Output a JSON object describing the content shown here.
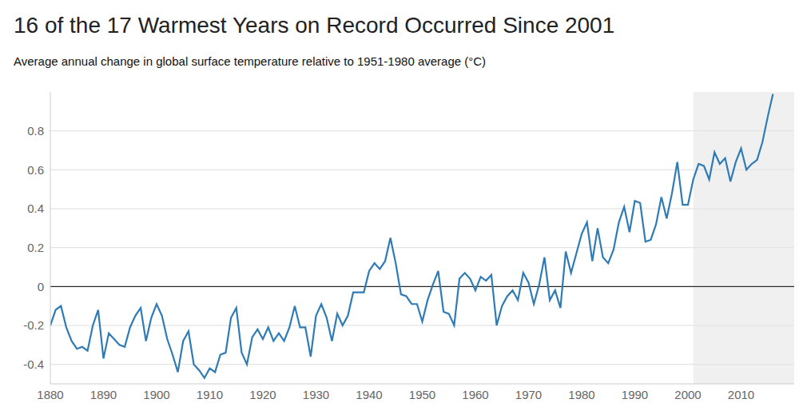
{
  "chart_data": {
    "type": "line",
    "title": "16 of the 17 Warmest Years on Record Occurred Since 2001",
    "subtitle": "Average annual change in global surface temperature relative to 1951-1980 average (°C)",
    "x": [
      1880,
      1881,
      1882,
      1883,
      1884,
      1885,
      1886,
      1887,
      1888,
      1889,
      1890,
      1891,
      1892,
      1893,
      1894,
      1895,
      1896,
      1897,
      1898,
      1899,
      1900,
      1901,
      1902,
      1903,
      1904,
      1905,
      1906,
      1907,
      1908,
      1909,
      1910,
      1911,
      1912,
      1913,
      1914,
      1915,
      1916,
      1917,
      1918,
      1919,
      1920,
      1921,
      1922,
      1923,
      1924,
      1925,
      1926,
      1927,
      1928,
      1929,
      1930,
      1931,
      1932,
      1933,
      1934,
      1935,
      1936,
      1937,
      1938,
      1939,
      1940,
      1941,
      1942,
      1943,
      1944,
      1945,
      1946,
      1947,
      1948,
      1949,
      1950,
      1951,
      1952,
      1953,
      1954,
      1955,
      1956,
      1957,
      1958,
      1959,
      1960,
      1961,
      1962,
      1963,
      1964,
      1965,
      1966,
      1967,
      1968,
      1969,
      1970,
      1971,
      1972,
      1973,
      1974,
      1975,
      1976,
      1977,
      1978,
      1979,
      1980,
      1981,
      1982,
      1983,
      1984,
      1985,
      1986,
      1987,
      1988,
      1989,
      1990,
      1991,
      1992,
      1993,
      1994,
      1995,
      1996,
      1997,
      1998,
      1999,
      2000,
      2001,
      2002,
      2003,
      2004,
      2005,
      2006,
      2007,
      2008,
      2009,
      2010,
      2011,
      2012,
      2013,
      2014,
      2015,
      2016
    ],
    "values": [
      -0.2,
      -0.12,
      -0.1,
      -0.21,
      -0.28,
      -0.32,
      -0.31,
      -0.33,
      -0.2,
      -0.12,
      -0.37,
      -0.24,
      -0.27,
      -0.3,
      -0.31,
      -0.21,
      -0.15,
      -0.11,
      -0.28,
      -0.16,
      -0.09,
      -0.15,
      -0.27,
      -0.35,
      -0.44,
      -0.28,
      -0.23,
      -0.4,
      -0.43,
      -0.47,
      -0.42,
      -0.44,
      -0.35,
      -0.34,
      -0.16,
      -0.11,
      -0.34,
      -0.4,
      -0.26,
      -0.22,
      -0.27,
      -0.21,
      -0.28,
      -0.24,
      -0.28,
      -0.21,
      -0.1,
      -0.21,
      -0.21,
      -0.36,
      -0.15,
      -0.09,
      -0.16,
      -0.28,
      -0.14,
      -0.2,
      -0.15,
      -0.03,
      -0.03,
      -0.03,
      0.08,
      0.12,
      0.09,
      0.13,
      0.25,
      0.12,
      -0.04,
      -0.05,
      -0.09,
      -0.09,
      -0.18,
      -0.07,
      0.01,
      0.08,
      -0.13,
      -0.14,
      -0.2,
      0.04,
      0.07,
      0.04,
      -0.02,
      0.05,
      0.03,
      0.06,
      -0.2,
      -0.1,
      -0.05,
      -0.02,
      -0.07,
      0.07,
      0.02,
      -0.09,
      0.01,
      0.15,
      -0.07,
      -0.02,
      -0.11,
      0.18,
      0.07,
      0.17,
      0.27,
      0.33,
      0.13,
      0.3,
      0.15,
      0.12,
      0.19,
      0.33,
      0.41,
      0.28,
      0.44,
      0.43,
      0.23,
      0.24,
      0.32,
      0.46,
      0.35,
      0.48,
      0.64,
      0.42,
      0.42,
      0.55,
      0.63,
      0.62,
      0.55,
      0.69,
      0.63,
      0.66,
      0.54,
      0.64,
      0.71,
      0.6,
      0.63,
      0.65,
      0.74,
      0.87,
      0.99
    ],
    "color": "#2f7bb6",
    "xlim": [
      1880,
      2020
    ],
    "xticks": [
      1880,
      1890,
      1900,
      1910,
      1920,
      1930,
      1940,
      1950,
      1960,
      1970,
      1980,
      1990,
      2000,
      2010
    ],
    "ylim": [
      -0.5,
      1.0
    ],
    "yticks": [
      -0.4,
      -0.2,
      0,
      0.2,
      0.4,
      0.6,
      0.8
    ],
    "grid": true,
    "highlight_x": [
      2001,
      2020
    ],
    "reference_line": 0
  }
}
